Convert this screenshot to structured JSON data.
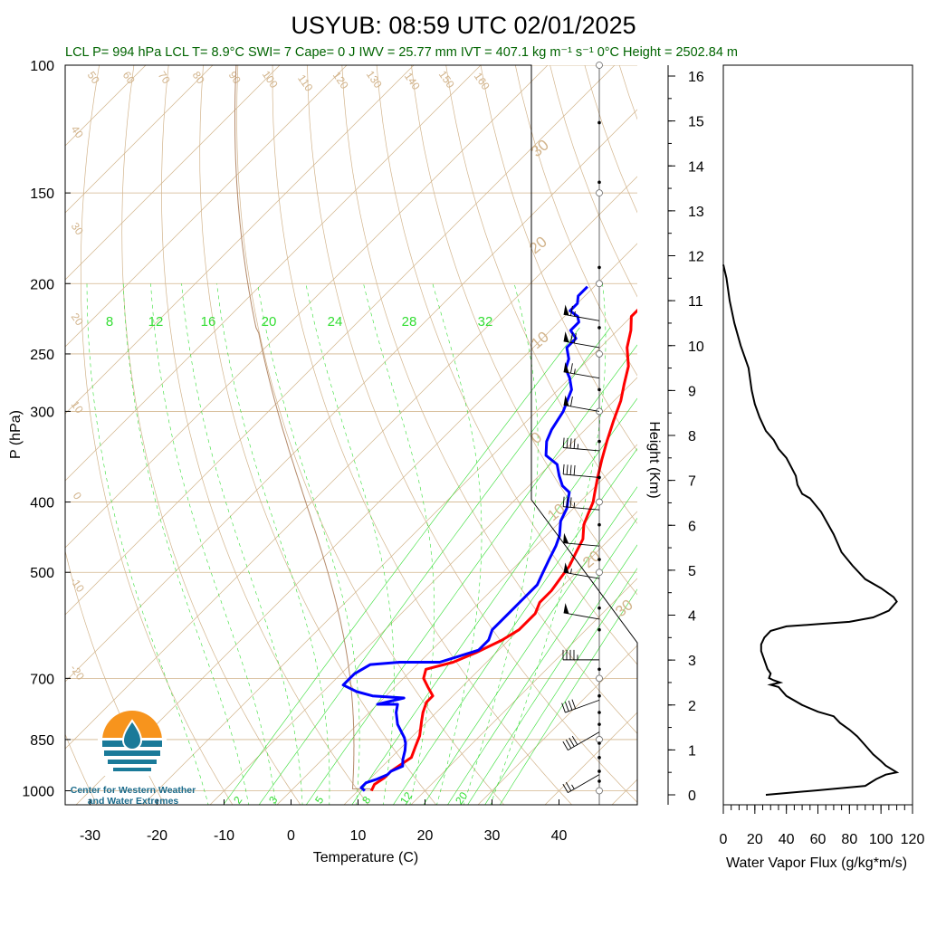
{
  "title": "USYUB: 08:59 UTC 02/01/2025",
  "stats": "LCL P= 994 hPa  LCL T= 8.9°C  SWI= 7  Cape= 0 J  IWV = 25.77 mm  IVT = 407.1 kg m⁻¹ s⁻¹  0°C Height = 2502.84 m",
  "logo_text": [
    "Center for Western Weather",
    "and Water Extremes"
  ],
  "colors": {
    "temperature": "#ff0000",
    "dewpoint": "#0000ff",
    "mixing_ratio": "#33dd33",
    "adiabat": "#d2b48c",
    "stats_text": "#006400"
  },
  "chart_data": [
    {
      "type": "line",
      "title": "",
      "xlabel": "Temperature (C)",
      "ylabel": "P (hPa)",
      "xlim": [
        -35,
        52
      ],
      "ylim": [
        1050,
        100
      ],
      "y_scale": "log",
      "x_ticks": [
        "-30",
        "-20",
        "-10",
        "0",
        "10",
        "20",
        "30",
        "40"
      ],
      "x_tick_values": [
        -30,
        -20,
        -10,
        0,
        10,
        20,
        30,
        40
      ],
      "y_ticks": [
        "100",
        "150",
        "200",
        "250",
        "300",
        "400",
        "500",
        "700",
        "850",
        "1000"
      ],
      "y_tick_values": [
        100,
        150,
        200,
        250,
        300,
        400,
        500,
        700,
        850,
        1000
      ],
      "dry_adiabat_labels": [
        "50",
        "60",
        "70",
        "80",
        "90",
        "100",
        "110",
        "120",
        "130",
        "140",
        "150",
        "160",
        "40",
        "30",
        "20",
        "10",
        "0",
        "-10",
        "-20"
      ],
      "moist_adiabat_labels": [
        "30",
        "20",
        "10",
        "0",
        "10",
        "20",
        "30"
      ],
      "mixing_ratio_top_labels": [
        "8",
        "12",
        "16",
        "20",
        "24",
        "28",
        "32"
      ],
      "mixing_ratio_bottom_labels": [
        "2",
        "3",
        "5",
        "8",
        "12",
        "20"
      ],
      "series": [
        {
          "name": "",
          "role": "temperature",
          "points": [
            [
              12,
              1000
            ],
            [
              11.5,
              980
            ],
            [
              12,
              960
            ],
            [
              12,
              940
            ],
            [
              13,
              900
            ],
            [
              12,
              870
            ],
            [
              11,
              840
            ],
            [
              9,
              800
            ],
            [
              8,
              780
            ],
            [
              7,
              755
            ],
            [
              7,
              740
            ],
            [
              5,
              720
            ],
            [
              3,
              700
            ],
            [
              2,
              680
            ],
            [
              5,
              665
            ],
            [
              7,
              645
            ],
            [
              9,
              620
            ],
            [
              10,
              600
            ],
            [
              10,
              570
            ],
            [
              9,
              550
            ],
            [
              9,
              530
            ],
            [
              8.5,
              510
            ],
            [
              8,
              490
            ],
            [
              7,
              470
            ],
            [
              6,
              450
            ],
            [
              4,
              430
            ],
            [
              3,
              415
            ],
            [
              2,
              400
            ],
            [
              1,
              390
            ],
            [
              -1,
              370
            ],
            [
              -3,
              350
            ],
            [
              -5,
              330
            ],
            [
              -7,
              310
            ],
            [
              -9,
              290
            ],
            [
              -11,
              275
            ],
            [
              -13,
              260
            ],
            [
              -16,
              245
            ],
            [
              -18,
              232
            ],
            [
              -20,
              222
            ],
            [
              -20,
              215
            ],
            [
              -21,
              208
            ],
            [
              -21,
              202
            ]
          ]
        },
        {
          "name": "",
          "role": "dewpoint",
          "points": [
            [
              11,
              1000
            ],
            [
              10,
              990
            ],
            [
              10,
              975
            ],
            [
              11,
              965
            ],
            [
              12,
              950
            ],
            [
              12,
              940
            ],
            [
              13,
              925
            ],
            [
              12,
              905
            ],
            [
              11,
              880
            ],
            [
              10,
              860
            ],
            [
              9,
              845
            ],
            [
              6,
              810
            ],
            [
              4,
              780
            ],
            [
              3,
              760
            ],
            [
              0,
              760
            ],
            [
              3,
              745
            ],
            [
              -2,
              740
            ],
            [
              -5,
              730
            ],
            [
              -8,
              715
            ],
            [
              -8,
              690
            ],
            [
              -7,
              670
            ],
            [
              -3,
              665
            ],
            [
              3,
              665
            ],
            [
              7,
              640
            ],
            [
              7,
              620
            ],
            [
              6,
              600
            ],
            [
              6,
              570
            ],
            [
              6,
              540
            ],
            [
              6,
              520
            ],
            [
              5,
              500
            ],
            [
              4,
              480
            ],
            [
              3,
              460
            ],
            [
              2,
              445
            ],
            [
              0,
              425
            ],
            [
              -1,
              408
            ],
            [
              -2,
              398
            ],
            [
              -3,
              388
            ],
            [
              -5,
              380
            ],
            [
              -7,
              368
            ],
            [
              -9,
              355
            ],
            [
              -12,
              345
            ],
            [
              -14,
              330
            ],
            [
              -15,
              318
            ],
            [
              -16,
              300
            ],
            [
              -17,
              290
            ],
            [
              -18,
              280
            ],
            [
              -20,
              270
            ],
            [
              -22,
              262
            ],
            [
              -23,
              254
            ],
            [
              -25,
              245
            ],
            [
              -25,
              238
            ],
            [
              -27,
              232
            ],
            [
              -27,
              226
            ],
            [
              -28,
              222
            ],
            [
              -30,
              218
            ],
            [
              -30,
              213
            ],
            [
              -31,
              208
            ],
            [
              -31,
              202
            ]
          ]
        }
      ],
      "wind_barbs": [
        {
          "p": 225,
          "speed": 65,
          "direction": 280
        },
        {
          "p": 245,
          "speed": 70,
          "direction": 280
        },
        {
          "p": 270,
          "speed": 65,
          "direction": 280
        },
        {
          "p": 300,
          "speed": 60,
          "direction": 280
        },
        {
          "p": 340,
          "speed": 45,
          "direction": 275
        },
        {
          "p": 370,
          "speed": 40,
          "direction": 275
        },
        {
          "p": 410,
          "speed": 35,
          "direction": 275
        },
        {
          "p": 460,
          "speed": 50,
          "direction": 275
        },
        {
          "p": 510,
          "speed": 55,
          "direction": 280
        },
        {
          "p": 580,
          "speed": 50,
          "direction": 280
        },
        {
          "p": 660,
          "speed": 45,
          "direction": 270
        },
        {
          "p": 750,
          "speed": 40,
          "direction": 250
        },
        {
          "p": 830,
          "speed": 40,
          "direction": 240
        },
        {
          "p": 950,
          "speed": 25,
          "direction": 240
        }
      ]
    },
    {
      "type": "line",
      "title": "",
      "xlabel": "Water Vapor Flux (g/kg*m/s)",
      "ylabel": "Height (Km)",
      "xlim": [
        0,
        120
      ],
      "ylim": [
        -0.3,
        16.3
      ],
      "x_ticks": [
        "0",
        "20",
        "40",
        "60",
        "80",
        "100",
        "120"
      ],
      "x_tick_values": [
        0,
        20,
        40,
        60,
        80,
        100,
        120
      ],
      "y_ticks": [
        "0",
        "1",
        "2",
        "3",
        "4",
        "5",
        "6",
        "7",
        "8",
        "9",
        "10",
        "11",
        "12",
        "13",
        "14",
        "15",
        "16"
      ],
      "y_tick_values": [
        0,
        1,
        2,
        3,
        4,
        5,
        6,
        7,
        8,
        9,
        10,
        11,
        12,
        13,
        14,
        15,
        16
      ],
      "series": [
        {
          "name": "",
          "points": [
            [
              27,
              0
            ],
            [
              60,
              0.1
            ],
            [
              90,
              0.2
            ],
            [
              97,
              0.35
            ],
            [
              103,
              0.45
            ],
            [
              110,
              0.5
            ],
            [
              103,
              0.65
            ],
            [
              100,
              0.75
            ],
            [
              95,
              0.9
            ],
            [
              90,
              1.1
            ],
            [
              85,
              1.3
            ],
            [
              80,
              1.45
            ],
            [
              74,
              1.6
            ],
            [
              70,
              1.75
            ],
            [
              60,
              1.85
            ],
            [
              50,
              2.0
            ],
            [
              40,
              2.2
            ],
            [
              35,
              2.4
            ],
            [
              30,
              2.45
            ],
            [
              36,
              2.5
            ],
            [
              32,
              2.55
            ],
            [
              29,
              2.6
            ],
            [
              30,
              2.7
            ],
            [
              28,
              2.8
            ],
            [
              26,
              3.0
            ],
            [
              24,
              3.2
            ],
            [
              24,
              3.35
            ],
            [
              26,
              3.5
            ],
            [
              30,
              3.65
            ],
            [
              40,
              3.75
            ],
            [
              60,
              3.8
            ],
            [
              80,
              3.85
            ],
            [
              95,
              3.95
            ],
            [
              105,
              4.1
            ],
            [
              110,
              4.3
            ],
            [
              108,
              4.4
            ],
            [
              100,
              4.6
            ],
            [
              90,
              4.8
            ],
            [
              82,
              5.1
            ],
            [
              75,
              5.4
            ],
            [
              70,
              5.8
            ],
            [
              62,
              6.3
            ],
            [
              55,
              6.6
            ],
            [
              50,
              6.7
            ],
            [
              47,
              6.9
            ],
            [
              46,
              7.1
            ],
            [
              43,
              7.3
            ],
            [
              40,
              7.5
            ],
            [
              35,
              7.7
            ],
            [
              32,
              7.9
            ],
            [
              27,
              8.1
            ],
            [
              23,
              8.4
            ],
            [
              20,
              8.7
            ],
            [
              18,
              9.0
            ],
            [
              16,
              9.5
            ],
            [
              11,
              10.0
            ],
            [
              7,
              10.5
            ],
            [
              4,
              11.0
            ],
            [
              2,
              11.5
            ],
            [
              0,
              11.8
            ]
          ]
        }
      ]
    }
  ]
}
